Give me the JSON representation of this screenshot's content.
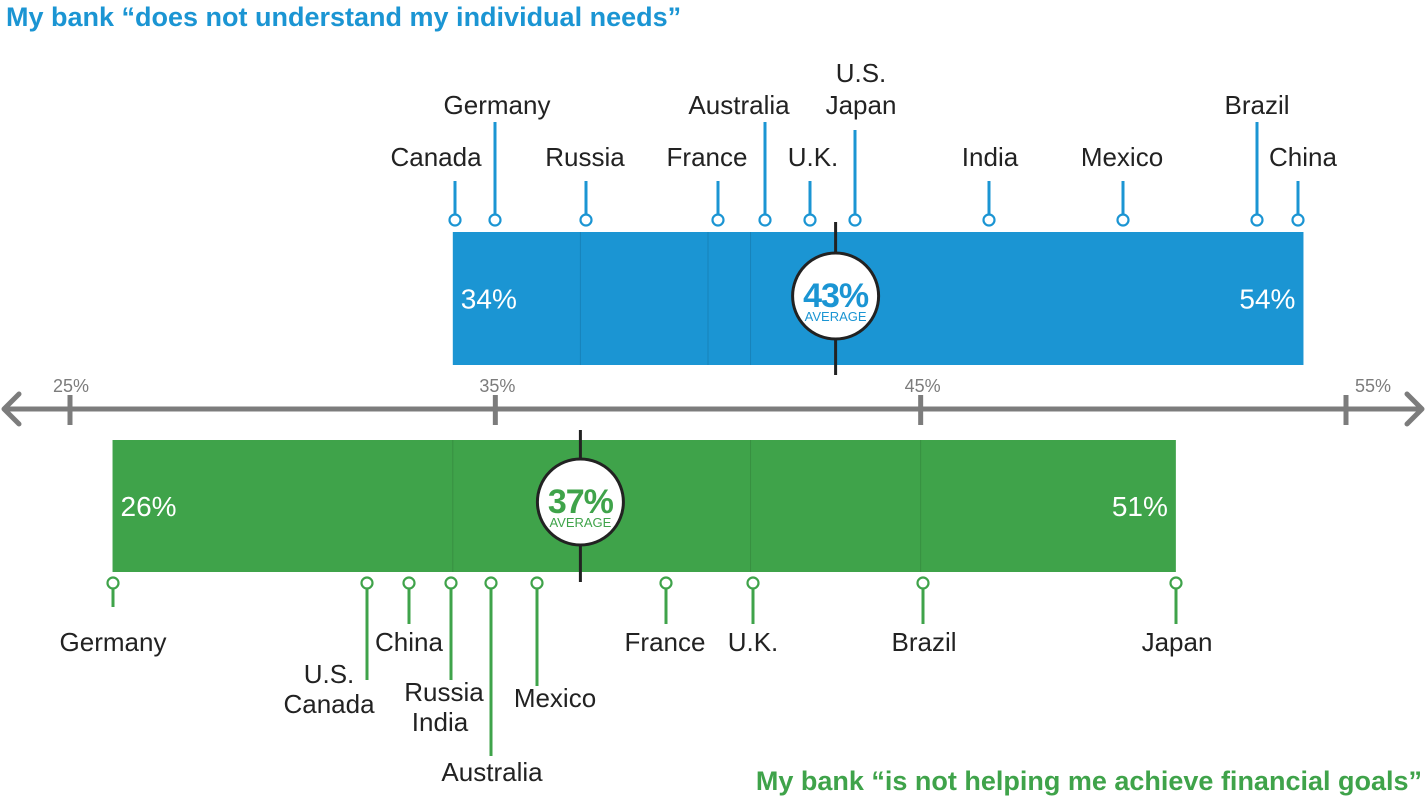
{
  "titles": {
    "top": "My bank “does not understand my individual needs”",
    "bottom": "My bank “is not  helping me achieve financial goals”"
  },
  "colors": {
    "top": "#1b95d3",
    "bottom": "#3fa34a",
    "axis": "#7c7c7c",
    "text": "#222222"
  },
  "chart_data": {
    "type": "range",
    "axis": {
      "min": 25,
      "max": 55,
      "unit": "%",
      "ticks": [
        {
          "value": 25,
          "label": "25%"
        },
        {
          "value": 35,
          "label": "35%"
        },
        {
          "value": 45,
          "label": "45%"
        },
        {
          "value": 55,
          "label": "55%"
        }
      ]
    },
    "series": [
      {
        "name": "My bank “does not understand my individual needs”",
        "position": "above-axis",
        "min": 34,
        "max": 54,
        "average": 43,
        "min_label": "34%",
        "max_label": "54%",
        "average_label": "43%",
        "average_caption": "AVERAGE",
        "countries": [
          {
            "name": "Canada",
            "value": 34
          },
          {
            "name": "Germany",
            "value": 35
          },
          {
            "name": "Russia",
            "value": 37
          },
          {
            "name": "France",
            "value": 40
          },
          {
            "name": "Australia",
            "value": 41
          },
          {
            "name": "U.K.",
            "value": 42
          },
          {
            "name": "U.S.",
            "value": 43
          },
          {
            "name": "Japan",
            "value": 43
          },
          {
            "name": "India",
            "value": 46
          },
          {
            "name": "Mexico",
            "value": 49
          },
          {
            "name": "Brazil",
            "value": 53
          },
          {
            "name": "China",
            "value": 54
          }
        ]
      },
      {
        "name": "My bank “is not  helping me achieve financial goals”",
        "position": "below-axis",
        "min": 26,
        "max": 51,
        "average": 37,
        "min_label": "26%",
        "max_label": "51%",
        "average_label": "37%",
        "average_caption": "AVERAGE",
        "countries": [
          {
            "name": "Germany",
            "value": 26
          },
          {
            "name": "U.S.",
            "value": 32
          },
          {
            "name": "Canada",
            "value": 32
          },
          {
            "name": "China",
            "value": 33
          },
          {
            "name": "Russia",
            "value": 34
          },
          {
            "name": "India",
            "value": 34
          },
          {
            "name": "Australia",
            "value": 35
          },
          {
            "name": "Mexico",
            "value": 36
          },
          {
            "name": "France",
            "value": 39
          },
          {
            "name": "U.K.",
            "value": 41
          },
          {
            "name": "Brazil",
            "value": 45
          },
          {
            "name": "Japan",
            "value": 51
          }
        ]
      }
    ]
  }
}
